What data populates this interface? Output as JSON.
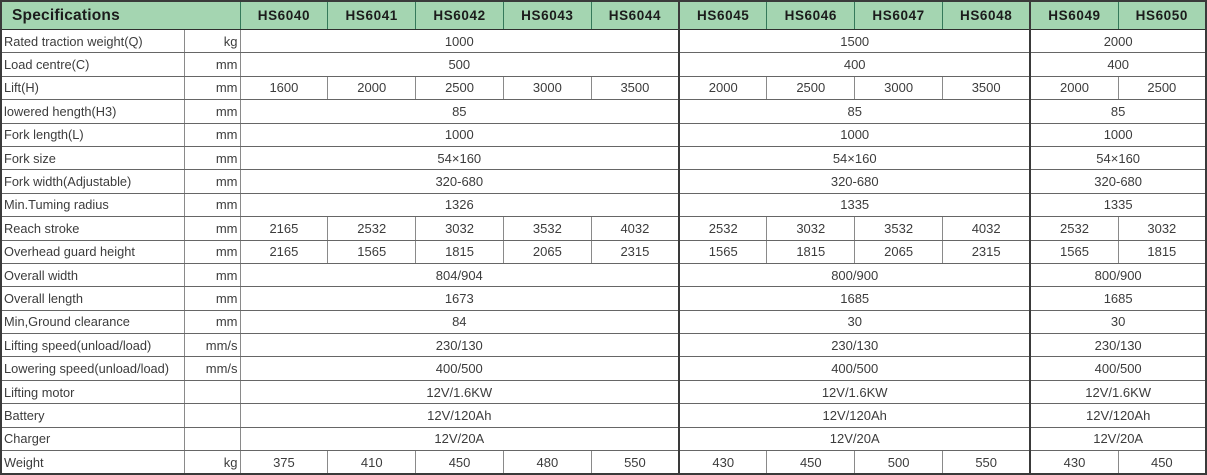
{
  "header": {
    "title": "Specifications",
    "models": [
      "HS6040",
      "HS6041",
      "HS6042",
      "HS6043",
      "HS6044",
      "HS6045",
      "HS6046",
      "HS6047",
      "HS6048",
      "HS6049",
      "HS6050"
    ]
  },
  "model_groups": [
    {
      "label": "HS6040-HS6044",
      "span": 5
    },
    {
      "label": "HS6045-HS6048",
      "span": 4
    },
    {
      "label": "HS6049-HS6050",
      "span": 2
    }
  ],
  "colors": {
    "header_bg": "#a4d5b1",
    "header_border": "#35795a",
    "grid_border": "#8a8a8a",
    "outer_border": "#3a3a3a",
    "text": "#3c3c3c"
  },
  "rows": [
    {
      "label": "Rated traction weight(Q)",
      "unit": "kg",
      "cells": [
        {
          "t": "1000",
          "s": 5
        },
        {
          "t": "1500",
          "s": 4
        },
        {
          "t": "2000",
          "s": 2
        }
      ]
    },
    {
      "label": "Load centre(C)",
      "unit": "mm",
      "cells": [
        {
          "t": "500",
          "s": 5
        },
        {
          "t": "400",
          "s": 4
        },
        {
          "t": "400",
          "s": 2
        }
      ]
    },
    {
      "label": "Lift(H)",
      "unit": "mm",
      "cells": [
        {
          "t": "1600",
          "s": 1
        },
        {
          "t": "2000",
          "s": 1
        },
        {
          "t": "2500",
          "s": 1
        },
        {
          "t": "3000",
          "s": 1
        },
        {
          "t": "3500",
          "s": 1
        },
        {
          "t": "2000",
          "s": 1
        },
        {
          "t": "2500",
          "s": 1
        },
        {
          "t": "3000",
          "s": 1
        },
        {
          "t": "3500",
          "s": 1
        },
        {
          "t": "2000",
          "s": 1
        },
        {
          "t": "2500",
          "s": 1
        }
      ]
    },
    {
      "label": "lowered hength(H3)",
      "unit": "mm",
      "cells": [
        {
          "t": "85",
          "s": 5
        },
        {
          "t": "85",
          "s": 4
        },
        {
          "t": "85",
          "s": 2
        }
      ]
    },
    {
      "label": "Fork length(L)",
      "unit": "mm",
      "cells": [
        {
          "t": "1000",
          "s": 5
        },
        {
          "t": "1000",
          "s": 4
        },
        {
          "t": "1000",
          "s": 2
        }
      ]
    },
    {
      "label": "Fork size",
      "unit": "mm",
      "cells": [
        {
          "t": "54×160",
          "s": 5
        },
        {
          "t": "54×160",
          "s": 4
        },
        {
          "t": "54×160",
          "s": 2
        }
      ]
    },
    {
      "label": "Fork width(Adjustable)",
      "unit": "mm",
      "cells": [
        {
          "t": "320-680",
          "s": 5
        },
        {
          "t": "320-680",
          "s": 4
        },
        {
          "t": "320-680",
          "s": 2
        }
      ]
    },
    {
      "label": "Min.Tuming radius",
      "unit": "mm",
      "cells": [
        {
          "t": "1326",
          "s": 5
        },
        {
          "t": "1335",
          "s": 4
        },
        {
          "t": "1335",
          "s": 2
        }
      ]
    },
    {
      "label": "Reach stroke",
      "unit": "mm",
      "cells": [
        {
          "t": "2165",
          "s": 1
        },
        {
          "t": "2532",
          "s": 1
        },
        {
          "t": "3032",
          "s": 1
        },
        {
          "t": "3532",
          "s": 1
        },
        {
          "t": "4032",
          "s": 1
        },
        {
          "t": "2532",
          "s": 1
        },
        {
          "t": "3032",
          "s": 1
        },
        {
          "t": "3532",
          "s": 1
        },
        {
          "t": "4032",
          "s": 1
        },
        {
          "t": "2532",
          "s": 1
        },
        {
          "t": "3032",
          "s": 1
        }
      ]
    },
    {
      "label": "Overhead guard height",
      "unit": "mm",
      "cells": [
        {
          "t": "2165",
          "s": 1
        },
        {
          "t": "1565",
          "s": 1
        },
        {
          "t": "1815",
          "s": 1
        },
        {
          "t": "2065",
          "s": 1
        },
        {
          "t": "2315",
          "s": 1
        },
        {
          "t": "1565",
          "s": 1
        },
        {
          "t": "1815",
          "s": 1
        },
        {
          "t": "2065",
          "s": 1
        },
        {
          "t": "2315",
          "s": 1
        },
        {
          "t": "1565",
          "s": 1
        },
        {
          "t": "1815",
          "s": 1
        }
      ]
    },
    {
      "label": "Overall width",
      "unit": "mm",
      "cells": [
        {
          "t": "804/904",
          "s": 5
        },
        {
          "t": "800/900",
          "s": 4
        },
        {
          "t": "800/900",
          "s": 2
        }
      ]
    },
    {
      "label": "Overall length",
      "unit": "mm",
      "cells": [
        {
          "t": "1673",
          "s": 5
        },
        {
          "t": "1685",
          "s": 4
        },
        {
          "t": "1685",
          "s": 2
        }
      ]
    },
    {
      "label": "Min,Ground clearance",
      "unit": "mm",
      "cells": [
        {
          "t": "84",
          "s": 5
        },
        {
          "t": "30",
          "s": 4
        },
        {
          "t": "30",
          "s": 2
        }
      ]
    },
    {
      "label": "Lifting speed(unload/load)",
      "unit": "mm/s",
      "cells": [
        {
          "t": "230/130",
          "s": 5
        },
        {
          "t": "230/130",
          "s": 4
        },
        {
          "t": "230/130",
          "s": 2
        }
      ]
    },
    {
      "label": "Lowering speed(unload/load)",
      "unit": "mm/s",
      "cells": [
        {
          "t": "400/500",
          "s": 5
        },
        {
          "t": "400/500",
          "s": 4
        },
        {
          "t": "400/500",
          "s": 2
        }
      ]
    },
    {
      "label": "Lifting motor",
      "unit": "",
      "cells": [
        {
          "t": "12V/1.6KW",
          "s": 5
        },
        {
          "t": "12V/1.6KW",
          "s": 4
        },
        {
          "t": "12V/1.6KW",
          "s": 2
        }
      ]
    },
    {
      "label": "Battery",
      "unit": "",
      "cells": [
        {
          "t": "12V/120Ah",
          "s": 5
        },
        {
          "t": "12V/120Ah",
          "s": 4
        },
        {
          "t": "12V/120Ah",
          "s": 2
        }
      ]
    },
    {
      "label": "Charger",
      "unit": "",
      "cells": [
        {
          "t": "12V/20A",
          "s": 5
        },
        {
          "t": "12V/20A",
          "s": 4
        },
        {
          "t": "12V/20A",
          "s": 2
        }
      ]
    },
    {
      "label": "Weight",
      "unit": "kg",
      "cells": [
        {
          "t": "375",
          "s": 1
        },
        {
          "t": "410",
          "s": 1
        },
        {
          "t": "450",
          "s": 1
        },
        {
          "t": "480",
          "s": 1
        },
        {
          "t": "550",
          "s": 1
        },
        {
          "t": "430",
          "s": 1
        },
        {
          "t": "450",
          "s": 1
        },
        {
          "t": "500",
          "s": 1
        },
        {
          "t": "550",
          "s": 1
        },
        {
          "t": "430",
          "s": 1
        },
        {
          "t": "450",
          "s": 1
        }
      ]
    }
  ]
}
